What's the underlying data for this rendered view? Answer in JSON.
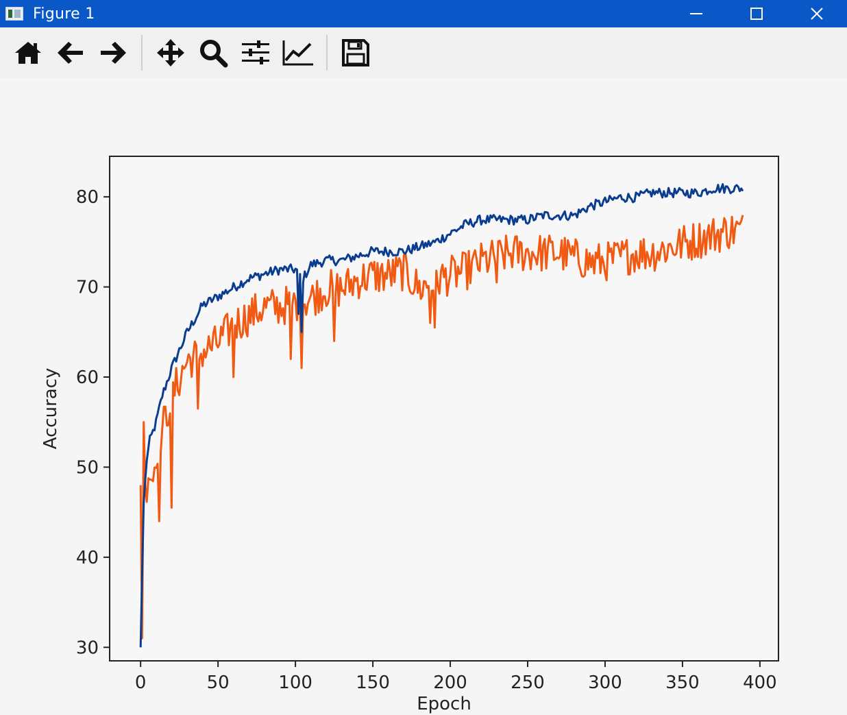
{
  "window": {
    "title": "Figure 1",
    "controls": [
      "minimize-icon",
      "maximize-icon",
      "close-icon"
    ]
  },
  "toolbar": {
    "tools": [
      {
        "name": "home",
        "icon": "home-icon"
      },
      {
        "name": "back",
        "icon": "arrow-left-icon"
      },
      {
        "name": "forward",
        "icon": "arrow-right-icon"
      },
      {
        "name": "pan",
        "icon": "move-icon"
      },
      {
        "name": "zoom",
        "icon": "magnifier-icon"
      },
      {
        "name": "configure-subplots",
        "icon": "sliders-icon"
      },
      {
        "name": "edit-axis",
        "icon": "line-chart-icon"
      },
      {
        "name": "save",
        "icon": "floppy-disk-icon"
      }
    ]
  },
  "colors": {
    "titlebar": "#0a58c8",
    "series_blue": "#0a3d8f",
    "series_orange": "#f05a12"
  },
  "chart_data": {
    "type": "line",
    "title": "",
    "xlabel": "Epoch",
    "ylabel": "Accuracy",
    "xlim": [
      -20,
      412
    ],
    "ylim": [
      28.5,
      84.5
    ],
    "xticks": [
      0,
      50,
      100,
      150,
      200,
      250,
      300,
      350,
      400
    ],
    "yticks": [
      30,
      40,
      50,
      60,
      70,
      80
    ],
    "grid": false,
    "legend": "none",
    "epochs": 390,
    "series": [
      {
        "color": "#0a3d8f",
        "anchors": [
          [
            0,
            30
          ],
          [
            1,
            38
          ],
          [
            2,
            46
          ],
          [
            4,
            51
          ],
          [
            6,
            53
          ],
          [
            10,
            55
          ],
          [
            14,
            58
          ],
          [
            20,
            61
          ],
          [
            25,
            63
          ],
          [
            30,
            65
          ],
          [
            40,
            68
          ],
          [
            50,
            69
          ],
          [
            60,
            70
          ],
          [
            70,
            71
          ],
          [
            80,
            71.5
          ],
          [
            90,
            72
          ],
          [
            100,
            72
          ],
          [
            105,
            71
          ],
          [
            110,
            72.5
          ],
          [
            120,
            73
          ],
          [
            130,
            73
          ],
          [
            140,
            73.5
          ],
          [
            150,
            74
          ],
          [
            160,
            74
          ],
          [
            170,
            74
          ],
          [
            180,
            74.5
          ],
          [
            190,
            75
          ],
          [
            200,
            76
          ],
          [
            210,
            77
          ],
          [
            220,
            77.5
          ],
          [
            230,
            77.5
          ],
          [
            240,
            77.5
          ],
          [
            250,
            77.5
          ],
          [
            260,
            78
          ],
          [
            270,
            78
          ],
          [
            280,
            78
          ],
          [
            290,
            79
          ],
          [
            300,
            79.5
          ],
          [
            310,
            80
          ],
          [
            320,
            80
          ],
          [
            330,
            80.5
          ],
          [
            340,
            80.5
          ],
          [
            350,
            80.5
          ],
          [
            360,
            80.5
          ],
          [
            370,
            81
          ],
          [
            380,
            81
          ],
          [
            390,
            81
          ]
        ],
        "noise": 0.55
      },
      {
        "color": "#f05a12",
        "anchors": [
          [
            0,
            48
          ],
          [
            1,
            31
          ],
          [
            2,
            55
          ],
          [
            3,
            47
          ],
          [
            5,
            50
          ],
          [
            8,
            49
          ],
          [
            10,
            52
          ],
          [
            15,
            55
          ],
          [
            20,
            58
          ],
          [
            30,
            62
          ],
          [
            40,
            63
          ],
          [
            50,
            64
          ],
          [
            60,
            66
          ],
          [
            70,
            67
          ],
          [
            80,
            68
          ],
          [
            90,
            68
          ],
          [
            100,
            68.5
          ],
          [
            110,
            69
          ],
          [
            120,
            70
          ],
          [
            130,
            70
          ],
          [
            140,
            71
          ],
          [
            150,
            71.5
          ],
          [
            160,
            71.5
          ],
          [
            170,
            72
          ],
          [
            180,
            70
          ],
          [
            190,
            71
          ],
          [
            200,
            71.5
          ],
          [
            210,
            72
          ],
          [
            220,
            73
          ],
          [
            230,
            73.5
          ],
          [
            240,
            74
          ],
          [
            250,
            74
          ],
          [
            260,
            74
          ],
          [
            270,
            74
          ],
          [
            280,
            73.5
          ],
          [
            290,
            73
          ],
          [
            300,
            73
          ],
          [
            310,
            73.5
          ],
          [
            320,
            74
          ],
          [
            330,
            74
          ],
          [
            340,
            74.5
          ],
          [
            350,
            75
          ],
          [
            360,
            75.5
          ],
          [
            370,
            76
          ],
          [
            380,
            76.5
          ],
          [
            390,
            76.5
          ]
        ],
        "noise": 2.2
      }
    ],
    "dips": [
      {
        "series": 1,
        "epoch": 20,
        "value": 45.5
      },
      {
        "series": 1,
        "epoch": 12,
        "value": 44
      },
      {
        "series": 1,
        "epoch": 37,
        "value": 56.5
      },
      {
        "series": 1,
        "epoch": 60,
        "value": 60
      },
      {
        "series": 1,
        "epoch": 97,
        "value": 62
      },
      {
        "series": 1,
        "epoch": 104,
        "value": 61
      },
      {
        "series": 1,
        "epoch": 125,
        "value": 64
      },
      {
        "series": 1,
        "epoch": 187,
        "value": 66
      },
      {
        "series": 1,
        "epoch": 190,
        "value": 65.5
      },
      {
        "series": 1,
        "epoch": 230,
        "value": 70.5
      },
      {
        "series": 1,
        "epoch": 293,
        "value": 71.5
      },
      {
        "series": 0,
        "epoch": 104,
        "value": 65
      },
      {
        "series": 0,
        "epoch": 102,
        "value": 67
      }
    ]
  }
}
